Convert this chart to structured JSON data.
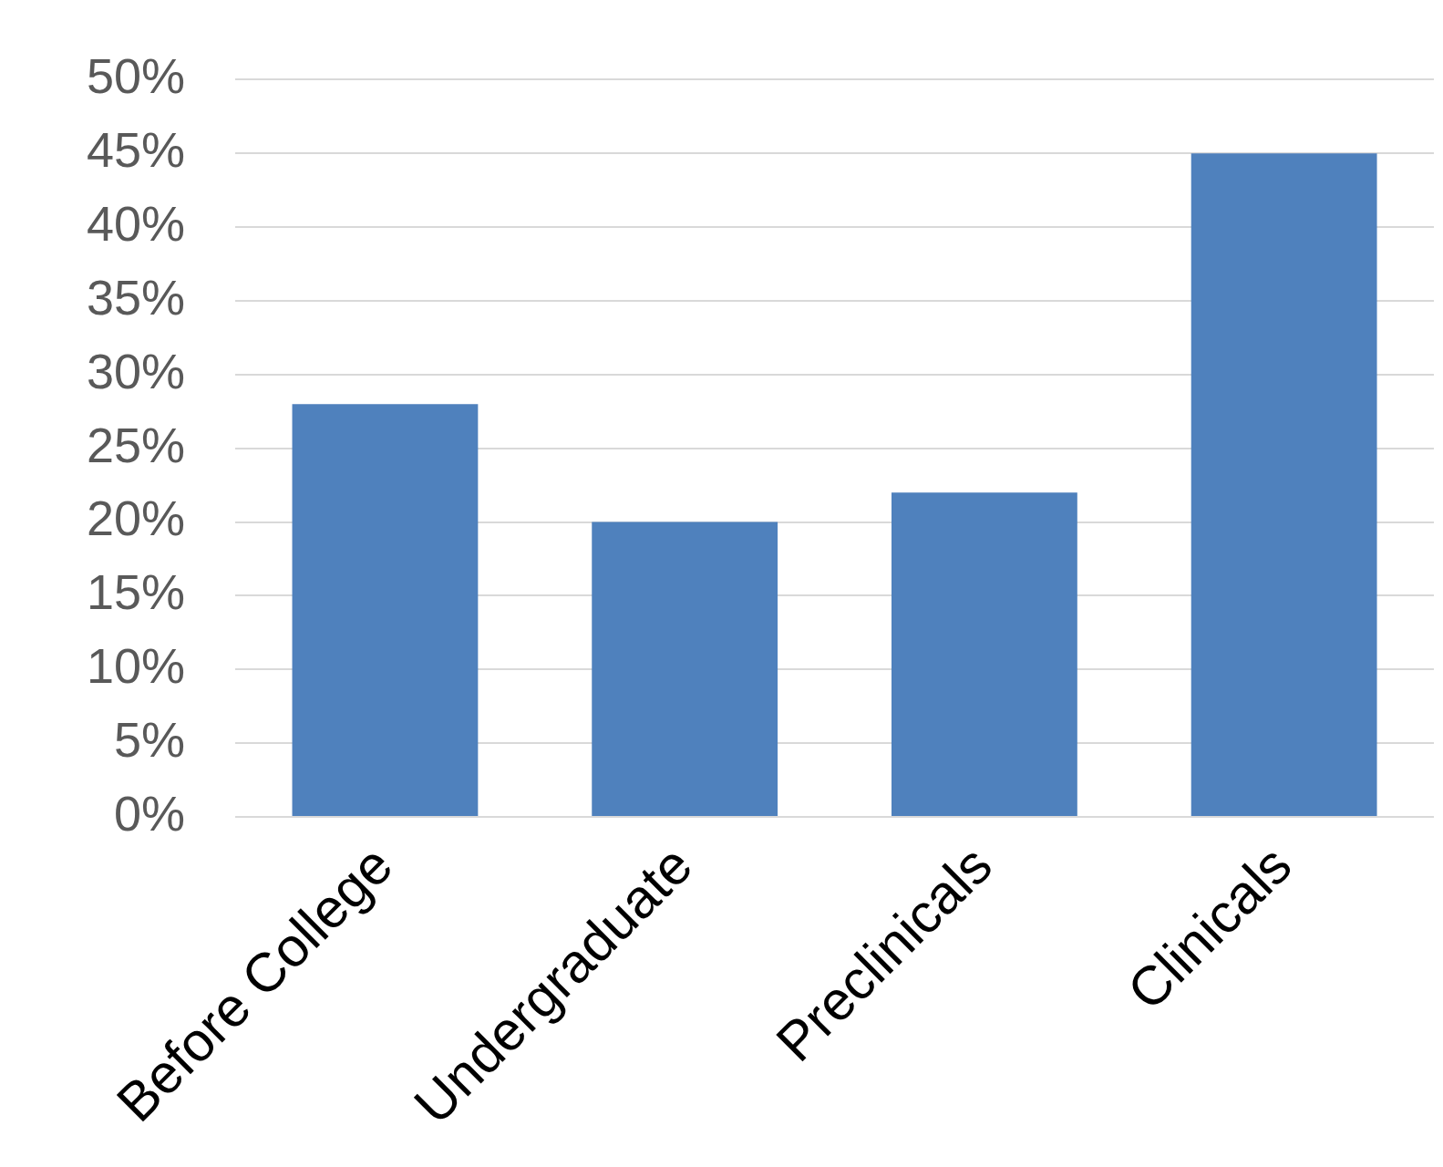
{
  "chart_data": {
    "type": "bar",
    "categories": [
      "Before College",
      "Undergraduate",
      "Preclinicals",
      "Clinicals"
    ],
    "values": [
      28,
      20,
      22,
      45
    ],
    "color": "#4f81bd",
    "ylim": [
      0,
      50
    ],
    "yticks": [
      {
        "value": 0,
        "label": "0%"
      },
      {
        "value": 5,
        "label": "5%"
      },
      {
        "value": 10,
        "label": "10%"
      },
      {
        "value": 15,
        "label": "15%"
      },
      {
        "value": 20,
        "label": "20%"
      },
      {
        "value": 25,
        "label": "25%"
      },
      {
        "value": 30,
        "label": "30%"
      },
      {
        "value": 35,
        "label": "35%"
      },
      {
        "value": 40,
        "label": "40%"
      },
      {
        "value": 45,
        "label": "45%"
      },
      {
        "value": 50,
        "label": "50%"
      }
    ],
    "grid": "y"
  }
}
